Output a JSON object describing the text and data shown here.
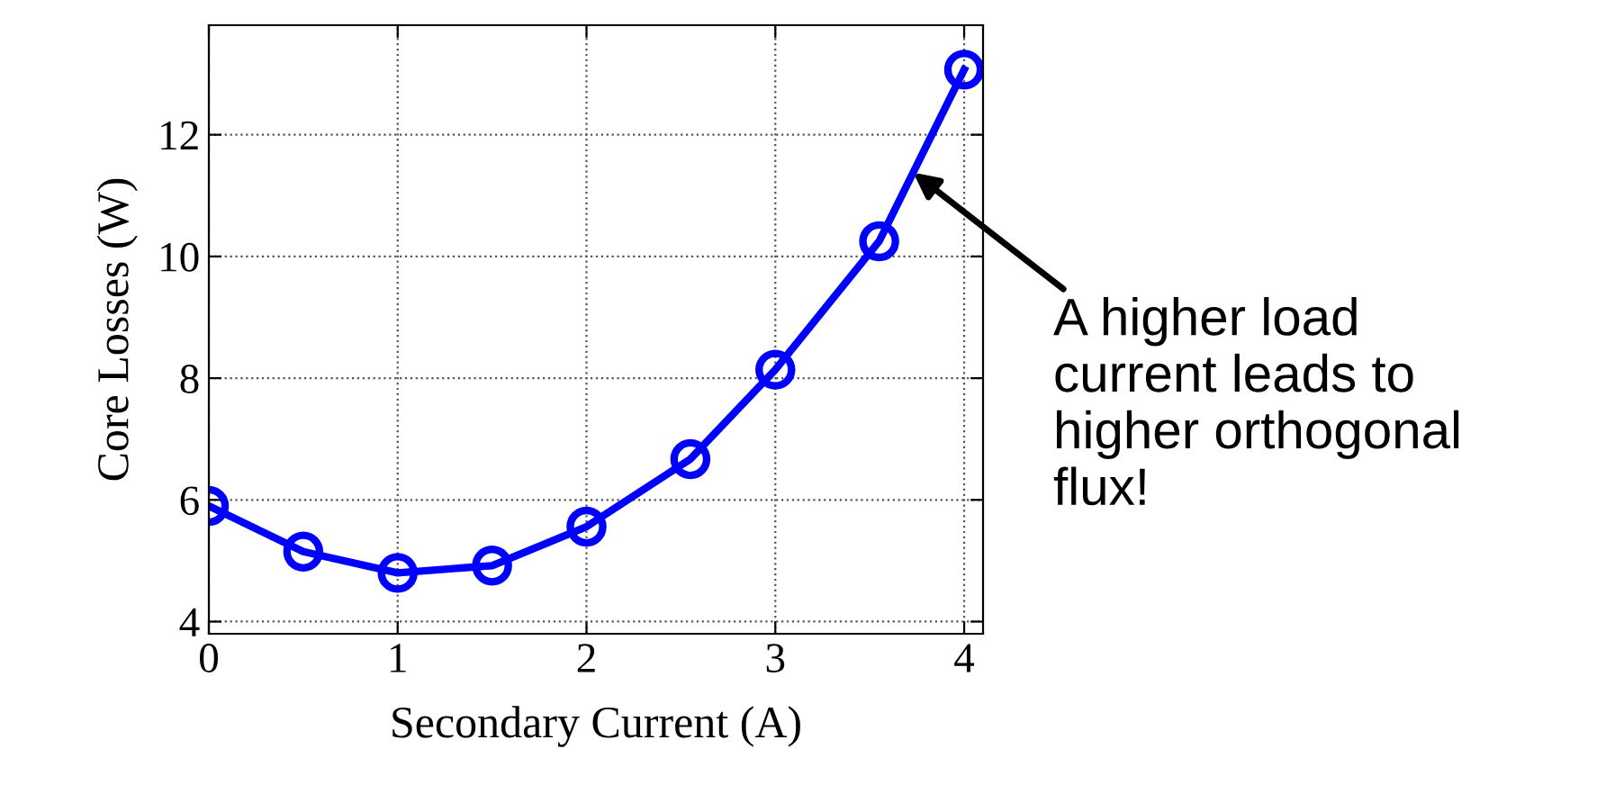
{
  "chart_data": {
    "type": "line",
    "xlabel": "Secondary Current (A)",
    "ylabel": "Core Losses (W)",
    "x": [
      0,
      0.5,
      1,
      1.5,
      2,
      2.55,
      3,
      3.55,
      4
    ],
    "series": [
      {
        "color": "#0000ff",
        "values": [
          5.9,
          5.15,
          4.8,
          4.92,
          5.56,
          6.67,
          8.14,
          10.25,
          13.07
        ]
      }
    ],
    "xlim": [
      0,
      4.1
    ],
    "ylim": [
      3.8,
      13.8
    ],
    "xticks": [
      0,
      1,
      2,
      3,
      4
    ],
    "yticks": [
      4,
      6,
      8,
      10,
      12
    ],
    "grid": true,
    "marker": "circle",
    "line_style": "solid",
    "annotations": [
      {
        "text": "A higher load\ncurrent leads to\nhigher orthogonal\nflux!",
        "x": 3.73,
        "y": 11.38
      }
    ]
  }
}
